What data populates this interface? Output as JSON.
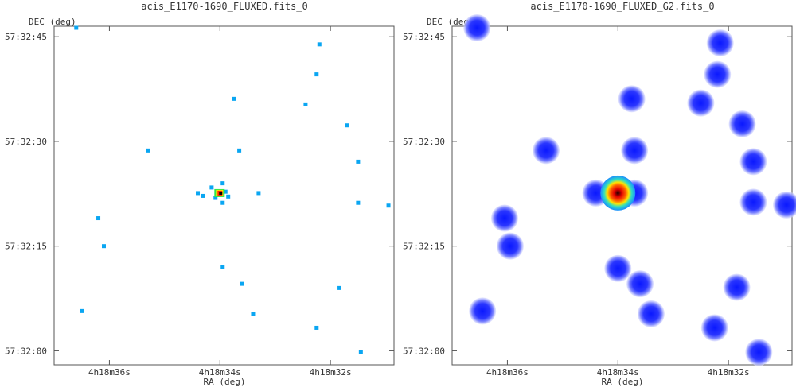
{
  "chart_data": [
    {
      "type": "scatter",
      "title": "acis_E1170-1690_FLUXED.fits_0",
      "xlabel": "RA (deg)",
      "ylabel": "DEC (deg)",
      "x_ticks": [
        "4h18m36s",
        "4h18m34s",
        "4h18m32s"
      ],
      "y_ticks": [
        "57:32:45",
        "57:32:30",
        "57:32:15",
        "57:32:00"
      ],
      "x_tick_values": [
        36,
        34,
        32
      ],
      "y_tick_values": [
        45,
        30,
        15,
        0
      ],
      "xlim": [
        37.0,
        30.85
      ],
      "ylim": [
        -2.0,
        46.5
      ],
      "x_unit": "seconds of RA after 4h18m",
      "y_unit": "arcseconds of DEC after 57:32",
      "grid": false,
      "smoothed": false,
      "points": [
        {
          "x": 36.6,
          "y": 46.4
        },
        {
          "x": 36.2,
          "y": 19.0
        },
        {
          "x": 36.5,
          "y": 5.7
        },
        {
          "x": 36.1,
          "y": 15.0
        },
        {
          "x": 35.3,
          "y": 28.7
        },
        {
          "x": 34.4,
          "y": 22.6
        },
        {
          "x": 34.3,
          "y": 22.2
        },
        {
          "x": 34.15,
          "y": 23.4
        },
        {
          "x": 34.08,
          "y": 21.9
        },
        {
          "x": 33.9,
          "y": 22.8
        },
        {
          "x": 33.95,
          "y": 21.2
        },
        {
          "x": 33.95,
          "y": 24.0
        },
        {
          "x": 33.85,
          "y": 22.1
        },
        {
          "x": 33.3,
          "y": 22.6
        },
        {
          "x": 33.75,
          "y": 36.1
        },
        {
          "x": 33.65,
          "y": 28.7
        },
        {
          "x": 33.95,
          "y": 12.0
        },
        {
          "x": 33.6,
          "y": 9.6
        },
        {
          "x": 33.4,
          "y": 5.3
        },
        {
          "x": 32.45,
          "y": 35.3
        },
        {
          "x": 32.25,
          "y": 39.6
        },
        {
          "x": 32.2,
          "y": 43.9
        },
        {
          "x": 31.7,
          "y": 32.3
        },
        {
          "x": 31.5,
          "y": 27.1
        },
        {
          "x": 31.5,
          "y": 21.2
        },
        {
          "x": 32.25,
          "y": 3.3
        },
        {
          "x": 31.85,
          "y": 9.0
        },
        {
          "x": 30.95,
          "y": 20.8
        },
        {
          "x": 31.45,
          "y": -0.2
        }
      ],
      "core": {
        "x": 34.0,
        "y": 22.6
      },
      "colors": {
        "point": "#0aa6f2",
        "core_hot": "#000000",
        "core_ring": [
          "#ff2a00",
          "#ffe600",
          "#2ee84a"
        ]
      }
    },
    {
      "type": "scatter",
      "title": "acis_E1170-1690_FLUXED_G2.fits_0",
      "xlabel": "RA (deg)",
      "ylabel": "DEC (deg)",
      "x_ticks": [
        "4h18m36s",
        "4h18m34s",
        "4h18m32s"
      ],
      "y_ticks": [
        "57:32:45",
        "57:32:30",
        "57:32:15",
        "57:32:00"
      ],
      "x_tick_values": [
        36,
        34,
        32
      ],
      "y_tick_values": [
        45,
        30,
        15,
        0
      ],
      "xlim": [
        37.0,
        30.85
      ],
      "ylim": [
        -2.0,
        46.5
      ],
      "x_unit": "seconds of RA after 4h18m",
      "y_unit": "arcseconds of DEC after 57:32",
      "grid": false,
      "smoothed": true,
      "points": [
        {
          "x": 36.55,
          "y": 46.4
        },
        {
          "x": 36.05,
          "y": 19.0
        },
        {
          "x": 36.45,
          "y": 5.7
        },
        {
          "x": 35.95,
          "y": 15.0
        },
        {
          "x": 35.3,
          "y": 28.7
        },
        {
          "x": 34.4,
          "y": 22.6
        },
        {
          "x": 33.7,
          "y": 22.6
        },
        {
          "x": 33.75,
          "y": 36.1
        },
        {
          "x": 33.7,
          "y": 28.7
        },
        {
          "x": 34.0,
          "y": 11.8
        },
        {
          "x": 33.6,
          "y": 9.6
        },
        {
          "x": 33.4,
          "y": 5.3
        },
        {
          "x": 32.5,
          "y": 35.5
        },
        {
          "x": 32.2,
          "y": 39.6
        },
        {
          "x": 32.15,
          "y": 44.1
        },
        {
          "x": 31.75,
          "y": 32.5
        },
        {
          "x": 31.55,
          "y": 27.1
        },
        {
          "x": 31.55,
          "y": 21.3
        },
        {
          "x": 32.25,
          "y": 3.3
        },
        {
          "x": 31.85,
          "y": 9.1
        },
        {
          "x": 30.95,
          "y": 20.9
        },
        {
          "x": 31.45,
          "y": -0.2
        }
      ],
      "core": {
        "x": 34.0,
        "y": 22.6
      },
      "colors": {
        "halo": "#1f2cff",
        "core_hot": "#2a0000",
        "core_ring": [
          "#e80000",
          "#ffe000",
          "#20e0c0"
        ]
      }
    }
  ]
}
